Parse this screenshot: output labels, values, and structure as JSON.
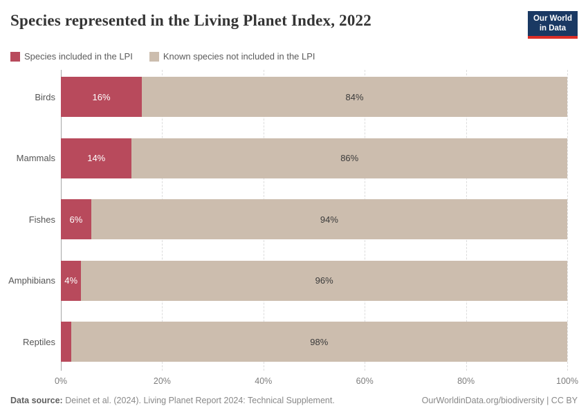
{
  "header": {
    "title": "Species represented in the Living Planet Index, 2022",
    "logo": {
      "line1": "Our World",
      "line2": "in Data"
    }
  },
  "chart_data": {
    "type": "bar",
    "orientation": "horizontal",
    "stacked": true,
    "title": "Species represented in the Living Planet Index, 2022",
    "categories": [
      "Birds",
      "Mammals",
      "Fishes",
      "Amphibians",
      "Reptiles"
    ],
    "series": [
      {
        "name": "Species included in the LPI",
        "color": "#b84a5c",
        "label_color": "#ffffff",
        "values": [
          16,
          14,
          6,
          4,
          2
        ],
        "labels": [
          "16%",
          "14%",
          "6%",
          "4%",
          ""
        ]
      },
      {
        "name": "Known species not included in the LPI",
        "color": "#ccbdae",
        "label_color": "#3a3a3a",
        "values": [
          84,
          86,
          94,
          96,
          98
        ],
        "labels": [
          "84%",
          "86%",
          "94%",
          "96%",
          "98%"
        ]
      }
    ],
    "x_ticks": [
      {
        "value": 0,
        "label": "0%"
      },
      {
        "value": 20,
        "label": "20%"
      },
      {
        "value": 40,
        "label": "40%"
      },
      {
        "value": 60,
        "label": "60%"
      },
      {
        "value": 80,
        "label": "80%"
      },
      {
        "value": 100,
        "label": "100%"
      }
    ],
    "xlim": [
      0,
      100
    ],
    "grid": "dashed-vertical",
    "legend_position": "top-left"
  },
  "footer": {
    "source_label": "Data source:",
    "source_text": " Deinet et al. (2024). Living Planet Report 2024: Technical Supplement.",
    "credit": "OurWorldinData.org/biodiversity | CC BY"
  },
  "colors": {
    "included": "#b84a5c",
    "not_included": "#ccbdae",
    "logo_background": "#1a3963",
    "logo_stripe": "#dc2e27"
  }
}
